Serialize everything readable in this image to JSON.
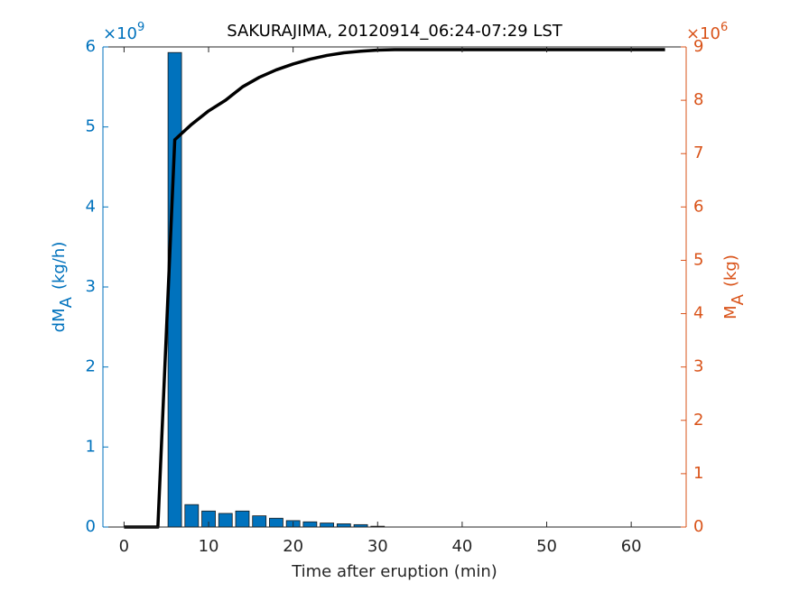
{
  "chart_data": {
    "type": "bar",
    "title": "SAKURAJIMA, 20120914_06:24-07:29 LST",
    "x_label": "Time after eruption (min)",
    "y_label": {
      "main": "dM",
      "sub": "A",
      "unit": "(kg/h)"
    },
    "y2_label": {
      "main": "M",
      "sub": "A",
      "unit": "(kg)"
    },
    "y_exponent": {
      "base": "×10",
      "power": "9"
    },
    "y2_exponent": {
      "base": "×10",
      "power": "6"
    },
    "xlim": [
      -2.5,
      66.5
    ],
    "xticks": [
      0,
      10,
      20,
      30,
      40,
      50,
      60
    ],
    "ylim": [
      0,
      6
    ],
    "yticks": [
      0,
      1,
      2,
      3,
      4,
      5,
      6
    ],
    "y2lim": [
      0,
      9
    ],
    "y2ticks": [
      0,
      1,
      2,
      3,
      4,
      5,
      6,
      7,
      8,
      9
    ],
    "y_color": "#0072BD",
    "y2_color": "#D95319",
    "series": [
      {
        "type": "bar",
        "color": "#0072BD",
        "x": [
          6,
          8,
          10,
          12,
          14,
          16,
          18,
          20,
          22,
          24,
          26,
          28,
          30
        ],
        "values": [
          5.93,
          0.28,
          0.2,
          0.17,
          0.2,
          0.14,
          0.11,
          0.08,
          0.065,
          0.05,
          0.04,
          0.03,
          0.01
        ]
      },
      {
        "type": "line",
        "axis": "y2",
        "color": "#000000",
        "x": [
          0,
          2,
          4,
          6,
          8,
          10,
          12,
          14,
          16,
          18,
          20,
          22,
          24,
          26,
          28,
          30,
          32,
          34,
          36,
          38,
          40,
          42,
          44,
          46,
          48,
          50,
          52,
          54,
          56,
          58,
          60,
          62,
          64
        ],
        "values": [
          0,
          0,
          0,
          7.26,
          7.55,
          7.8,
          8.0,
          8.25,
          8.43,
          8.57,
          8.68,
          8.77,
          8.84,
          8.89,
          8.92,
          8.94,
          8.95,
          8.95,
          8.95,
          8.95,
          8.95,
          8.95,
          8.95,
          8.95,
          8.95,
          8.95,
          8.95,
          8.95,
          8.95,
          8.95,
          8.95,
          8.95,
          8.95
        ]
      }
    ]
  }
}
